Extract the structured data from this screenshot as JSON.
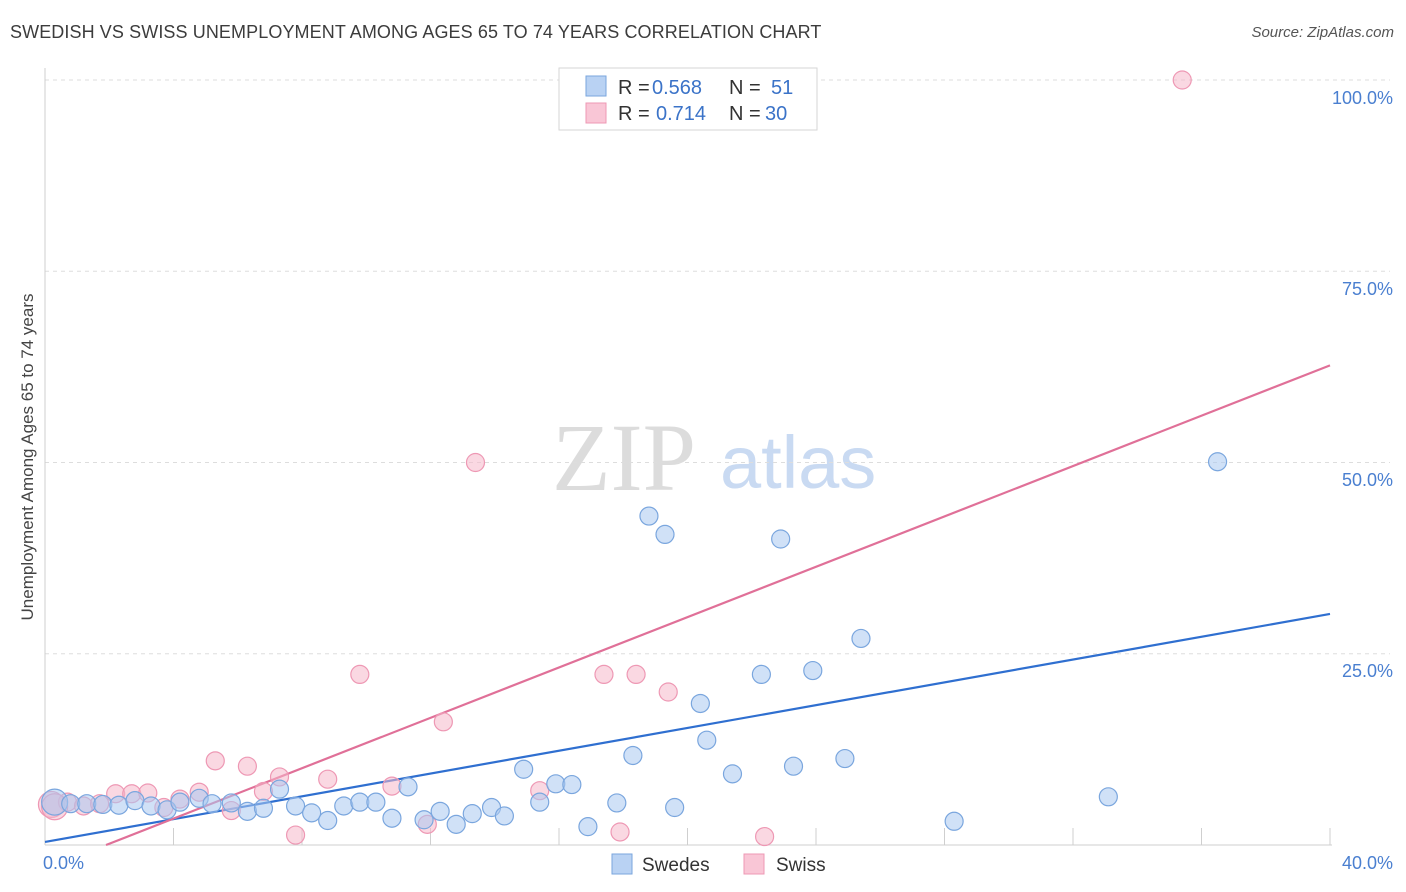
{
  "header": {
    "title": "SWEDISH VS SWISS UNEMPLOYMENT AMONG AGES 65 TO 74 YEARS CORRELATION CHART",
    "source": "Source: ZipAtlas.com"
  },
  "watermark": {
    "zip": "ZIP",
    "atlas": "atlas"
  },
  "legend": {
    "rows": [
      {
        "r_label": "R =",
        "r_value": "0.568",
        "n_label": "N =",
        "n_value": "51"
      },
      {
        "r_label": "R =",
        "r_value": "0.714",
        "n_label": "N =",
        "n_value": "30"
      }
    ]
  },
  "bottom_legend": {
    "swedes": "Swedes",
    "swiss": "Swiss"
  },
  "colors": {
    "swedes_fill": "#a9c8f0",
    "swedes_stroke": "#7aa6de",
    "swedes_line": "#2f6fd0",
    "swiss_fill": "#f6b8cb",
    "swiss_stroke": "#ee98b4",
    "swiss_line": "#e07098",
    "grid": "#dddddd",
    "tick": "#4a7fd0"
  },
  "chart_data": {
    "type": "scatter",
    "title": "SWEDISH VS SWISS UNEMPLOYMENT AMONG AGES 65 TO 74 YEARS CORRELATION CHART",
    "xlabel": "",
    "ylabel": "Unemployment Among Ages 65 to 74 years",
    "xlim": [
      0,
      40
    ],
    "ylim": [
      0,
      100
    ],
    "x_tick_labels": [
      "0.0%",
      "40.0%"
    ],
    "y_ticks": [
      25,
      50,
      75,
      100
    ],
    "y_tick_labels": [
      "25.0%",
      "50.0%",
      "75.0%",
      "100.0%"
    ],
    "grid": true,
    "series": [
      {
        "name": "Swedes",
        "r": 0.568,
        "n": 51,
        "trend": {
          "x": [
            0,
            40
          ],
          "y": [
            0.4,
            30.2
          ]
        },
        "points": [
          {
            "x": 0.3,
            "y": 5.6
          },
          {
            "x": 0.8,
            "y": 5.4
          },
          {
            "x": 1.3,
            "y": 5.4
          },
          {
            "x": 1.8,
            "y": 5.3
          },
          {
            "x": 2.3,
            "y": 5.2
          },
          {
            "x": 2.8,
            "y": 5.8
          },
          {
            "x": 3.3,
            "y": 5.1
          },
          {
            "x": 3.8,
            "y": 4.6
          },
          {
            "x": 4.2,
            "y": 5.6
          },
          {
            "x": 4.8,
            "y": 6.1
          },
          {
            "x": 5.2,
            "y": 5.4
          },
          {
            "x": 5.8,
            "y": 5.5
          },
          {
            "x": 6.3,
            "y": 4.4
          },
          {
            "x": 6.8,
            "y": 4.8
          },
          {
            "x": 7.3,
            "y": 7.3
          },
          {
            "x": 7.8,
            "y": 5.1
          },
          {
            "x": 8.3,
            "y": 4.2
          },
          {
            "x": 8.8,
            "y": 3.2
          },
          {
            "x": 9.3,
            "y": 5.1
          },
          {
            "x": 9.8,
            "y": 5.6
          },
          {
            "x": 10.3,
            "y": 5.6
          },
          {
            "x": 10.8,
            "y": 3.5
          },
          {
            "x": 11.3,
            "y": 7.6
          },
          {
            "x": 11.8,
            "y": 3.3
          },
          {
            "x": 12.3,
            "y": 4.4
          },
          {
            "x": 12.8,
            "y": 2.7
          },
          {
            "x": 13.3,
            "y": 4.1
          },
          {
            "x": 13.9,
            "y": 4.9
          },
          {
            "x": 14.3,
            "y": 3.8
          },
          {
            "x": 14.9,
            "y": 9.9
          },
          {
            "x": 15.4,
            "y": 5.6
          },
          {
            "x": 15.9,
            "y": 8.0
          },
          {
            "x": 16.4,
            "y": 7.9
          },
          {
            "x": 16.9,
            "y": 2.4
          },
          {
            "x": 17.8,
            "y": 5.5
          },
          {
            "x": 18.3,
            "y": 11.7
          },
          {
            "x": 18.8,
            "y": 43.0
          },
          {
            "x": 19.3,
            "y": 40.6
          },
          {
            "x": 19.6,
            "y": 4.9
          },
          {
            "x": 20.4,
            "y": 18.5
          },
          {
            "x": 20.6,
            "y": 13.7
          },
          {
            "x": 21.4,
            "y": 9.3
          },
          {
            "x": 22.3,
            "y": 22.3
          },
          {
            "x": 22.9,
            "y": 40.0
          },
          {
            "x": 23.3,
            "y": 10.3
          },
          {
            "x": 23.9,
            "y": 22.8
          },
          {
            "x": 24.9,
            "y": 11.3
          },
          {
            "x": 25.4,
            "y": 27.0
          },
          {
            "x": 28.3,
            "y": 3.1
          },
          {
            "x": 33.1,
            "y": 6.3
          },
          {
            "x": 36.5,
            "y": 50.1
          }
        ]
      },
      {
        "name": "Swiss",
        "r": 0.714,
        "n": 30,
        "trend": {
          "x": [
            1.9,
            40
          ],
          "y": [
            0,
            62.7
          ]
        },
        "points": [
          {
            "x": 0.2,
            "y": 5.3
          },
          {
            "x": 0.7,
            "y": 5.6
          },
          {
            "x": 1.2,
            "y": 5.1
          },
          {
            "x": 1.7,
            "y": 5.4
          },
          {
            "x": 2.2,
            "y": 6.7
          },
          {
            "x": 2.7,
            "y": 6.7
          },
          {
            "x": 3.2,
            "y": 6.8
          },
          {
            "x": 3.7,
            "y": 4.9
          },
          {
            "x": 4.2,
            "y": 6.0
          },
          {
            "x": 4.8,
            "y": 6.9
          },
          {
            "x": 5.3,
            "y": 11.0
          },
          {
            "x": 5.8,
            "y": 4.5
          },
          {
            "x": 6.3,
            "y": 10.3
          },
          {
            "x": 6.8,
            "y": 7.0
          },
          {
            "x": 7.3,
            "y": 8.9
          },
          {
            "x": 7.8,
            "y": 1.3
          },
          {
            "x": 8.8,
            "y": 8.6
          },
          {
            "x": 9.8,
            "y": 22.3
          },
          {
            "x": 10.8,
            "y": 7.7
          },
          {
            "x": 11.9,
            "y": 2.7
          },
          {
            "x": 12.4,
            "y": 16.1
          },
          {
            "x": 13.4,
            "y": 50.0
          },
          {
            "x": 15.4,
            "y": 7.1
          },
          {
            "x": 17.4,
            "y": 22.3
          },
          {
            "x": 17.9,
            "y": 1.7
          },
          {
            "x": 18.4,
            "y": 22.3
          },
          {
            "x": 19.4,
            "y": 20.0
          },
          {
            "x": 22.4,
            "y": 1.1
          },
          {
            "x": 35.4,
            "y": 100.0
          },
          {
            "x": 0.3,
            "y": 5.0
          }
        ]
      }
    ]
  }
}
